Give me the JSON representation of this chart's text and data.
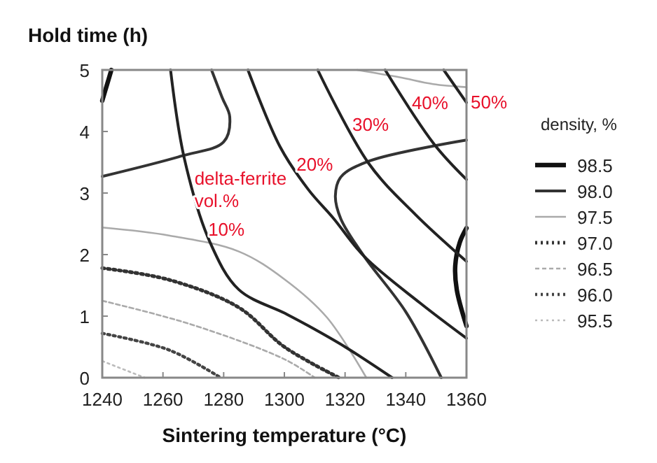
{
  "chart_data": {
    "type": "line",
    "xlabel": "Sintering temperature (°C)",
    "ylabel": "Hold time (h)",
    "legend_title": "density, %",
    "legend": "right",
    "xlim": [
      1240,
      1360
    ],
    "ylim": [
      0,
      5
    ],
    "xticks": [
      1240,
      1260,
      1280,
      1300,
      1320,
      1340,
      1360
    ],
    "yticks": [
      0,
      1,
      2,
      3,
      4,
      5
    ],
    "grid": false,
    "series": [
      {
        "name": "98.5",
        "color": "#111111",
        "line_style": "solid",
        "x": [
          1243,
          1241.5,
          1240,
          null,
          1360,
          1357.8,
          1356.3,
          1356.8,
          1360
        ],
        "values": [
          5,
          4.75,
          4.5,
          null,
          2.43,
          2.2,
          1.82,
          1.43,
          0.84
        ]
      },
      {
        "name": "98.0",
        "color": "#333333",
        "line_style": "solid",
        "x": [
          1240,
          1266,
          1280,
          1282,
          1279.5,
          1276,
          null,
          1360,
          1328,
          1318.6,
          1316.8,
          1318.6,
          1326.3,
          1340,
          1351.7
        ],
        "values": [
          3.27,
          3.6,
          3.83,
          4.24,
          4.55,
          5,
          null,
          3.86,
          3.52,
          3.26,
          2.95,
          2.58,
          1.97,
          1.07,
          0
        ]
      },
      {
        "name": "97.5",
        "color": "#aaaaaa",
        "line_style": "solid",
        "x": [
          1240,
          1262,
          1285,
          1300,
          1314,
          1327,
          null,
          1324,
          1338,
          1349,
          1360
        ],
        "values": [
          2.44,
          2.31,
          2.05,
          1.6,
          0.98,
          0,
          null,
          5,
          4.88,
          4.77,
          4.72
        ]
      },
      {
        "name": "97.0",
        "color": "#333333",
        "line_style": "dotted",
        "x": [
          1240,
          1262,
          1285,
          1300,
          1318
        ],
        "values": [
          1.78,
          1.59,
          1.14,
          0.5,
          0
        ]
      },
      {
        "name": "96.5",
        "color": "#aaaaaa",
        "line_style": "dashed",
        "x": [
          1240,
          1269,
          1300,
          1310
        ],
        "values": [
          1.25,
          0.87,
          0.3,
          0
        ]
      },
      {
        "name": "96.0",
        "color": "#444444",
        "line_style": "dotted",
        "x": [
          1240,
          1262,
          1279
        ],
        "values": [
          0.72,
          0.45,
          0
        ]
      },
      {
        "name": "95.5",
        "color": "#bbbbbb",
        "line_style": "dotted",
        "x": [
          1240,
          1254
        ],
        "values": [
          0.27,
          0
        ]
      },
      {
        "color": "#222222",
        "line_style": "solid",
        "x": [
          1262.5,
          1267,
          1275.5,
          1285,
          1300,
          1308,
          1320,
          1335.5
        ],
        "values": [
          5,
          3.57,
          2.2,
          1.43,
          1.05,
          0.84,
          0.5,
          0
        ]
      },
      {
        "color": "#222222",
        "line_style": "solid",
        "x": [
          1288,
          1298.6,
          1308,
          1316,
          1326.3,
          1344.8,
          1360
        ],
        "values": [
          5,
          3.75,
          3.05,
          2.6,
          1.97,
          1.21,
          0.64
        ]
      },
      {
        "color": "#222222",
        "line_style": "solid",
        "x": [
          1311,
          1327.8,
          1343.2,
          1360
        ],
        "values": [
          5,
          3.48,
          2.65,
          1.89
        ]
      },
      {
        "color": "#222222",
        "line_style": "solid",
        "x": [
          1333.2,
          1349.4,
          1360
        ],
        "values": [
          5,
          3.79,
          3.22
        ]
      },
      {
        "color": "#222222",
        "line_style": "solid",
        "x": [
          1352.5,
          1360
        ],
        "values": [
          5,
          4.47
        ]
      }
    ],
    "annotations": [
      {
        "text": "delta-ferrite vol.%",
        "x": 1269,
        "y": 3.05
      },
      {
        "text": "10%",
        "x": 1273.5,
        "y": 2.4
      },
      {
        "text": "20%",
        "x": 1302.6,
        "y": 3.45
      },
      {
        "text": "30%",
        "x": 1321,
        "y": 4.1
      },
      {
        "text": "40%",
        "x": 1340.6,
        "y": 4.45
      },
      {
        "text": "50%",
        "x": 1360,
        "y": 4.47
      }
    ]
  }
}
